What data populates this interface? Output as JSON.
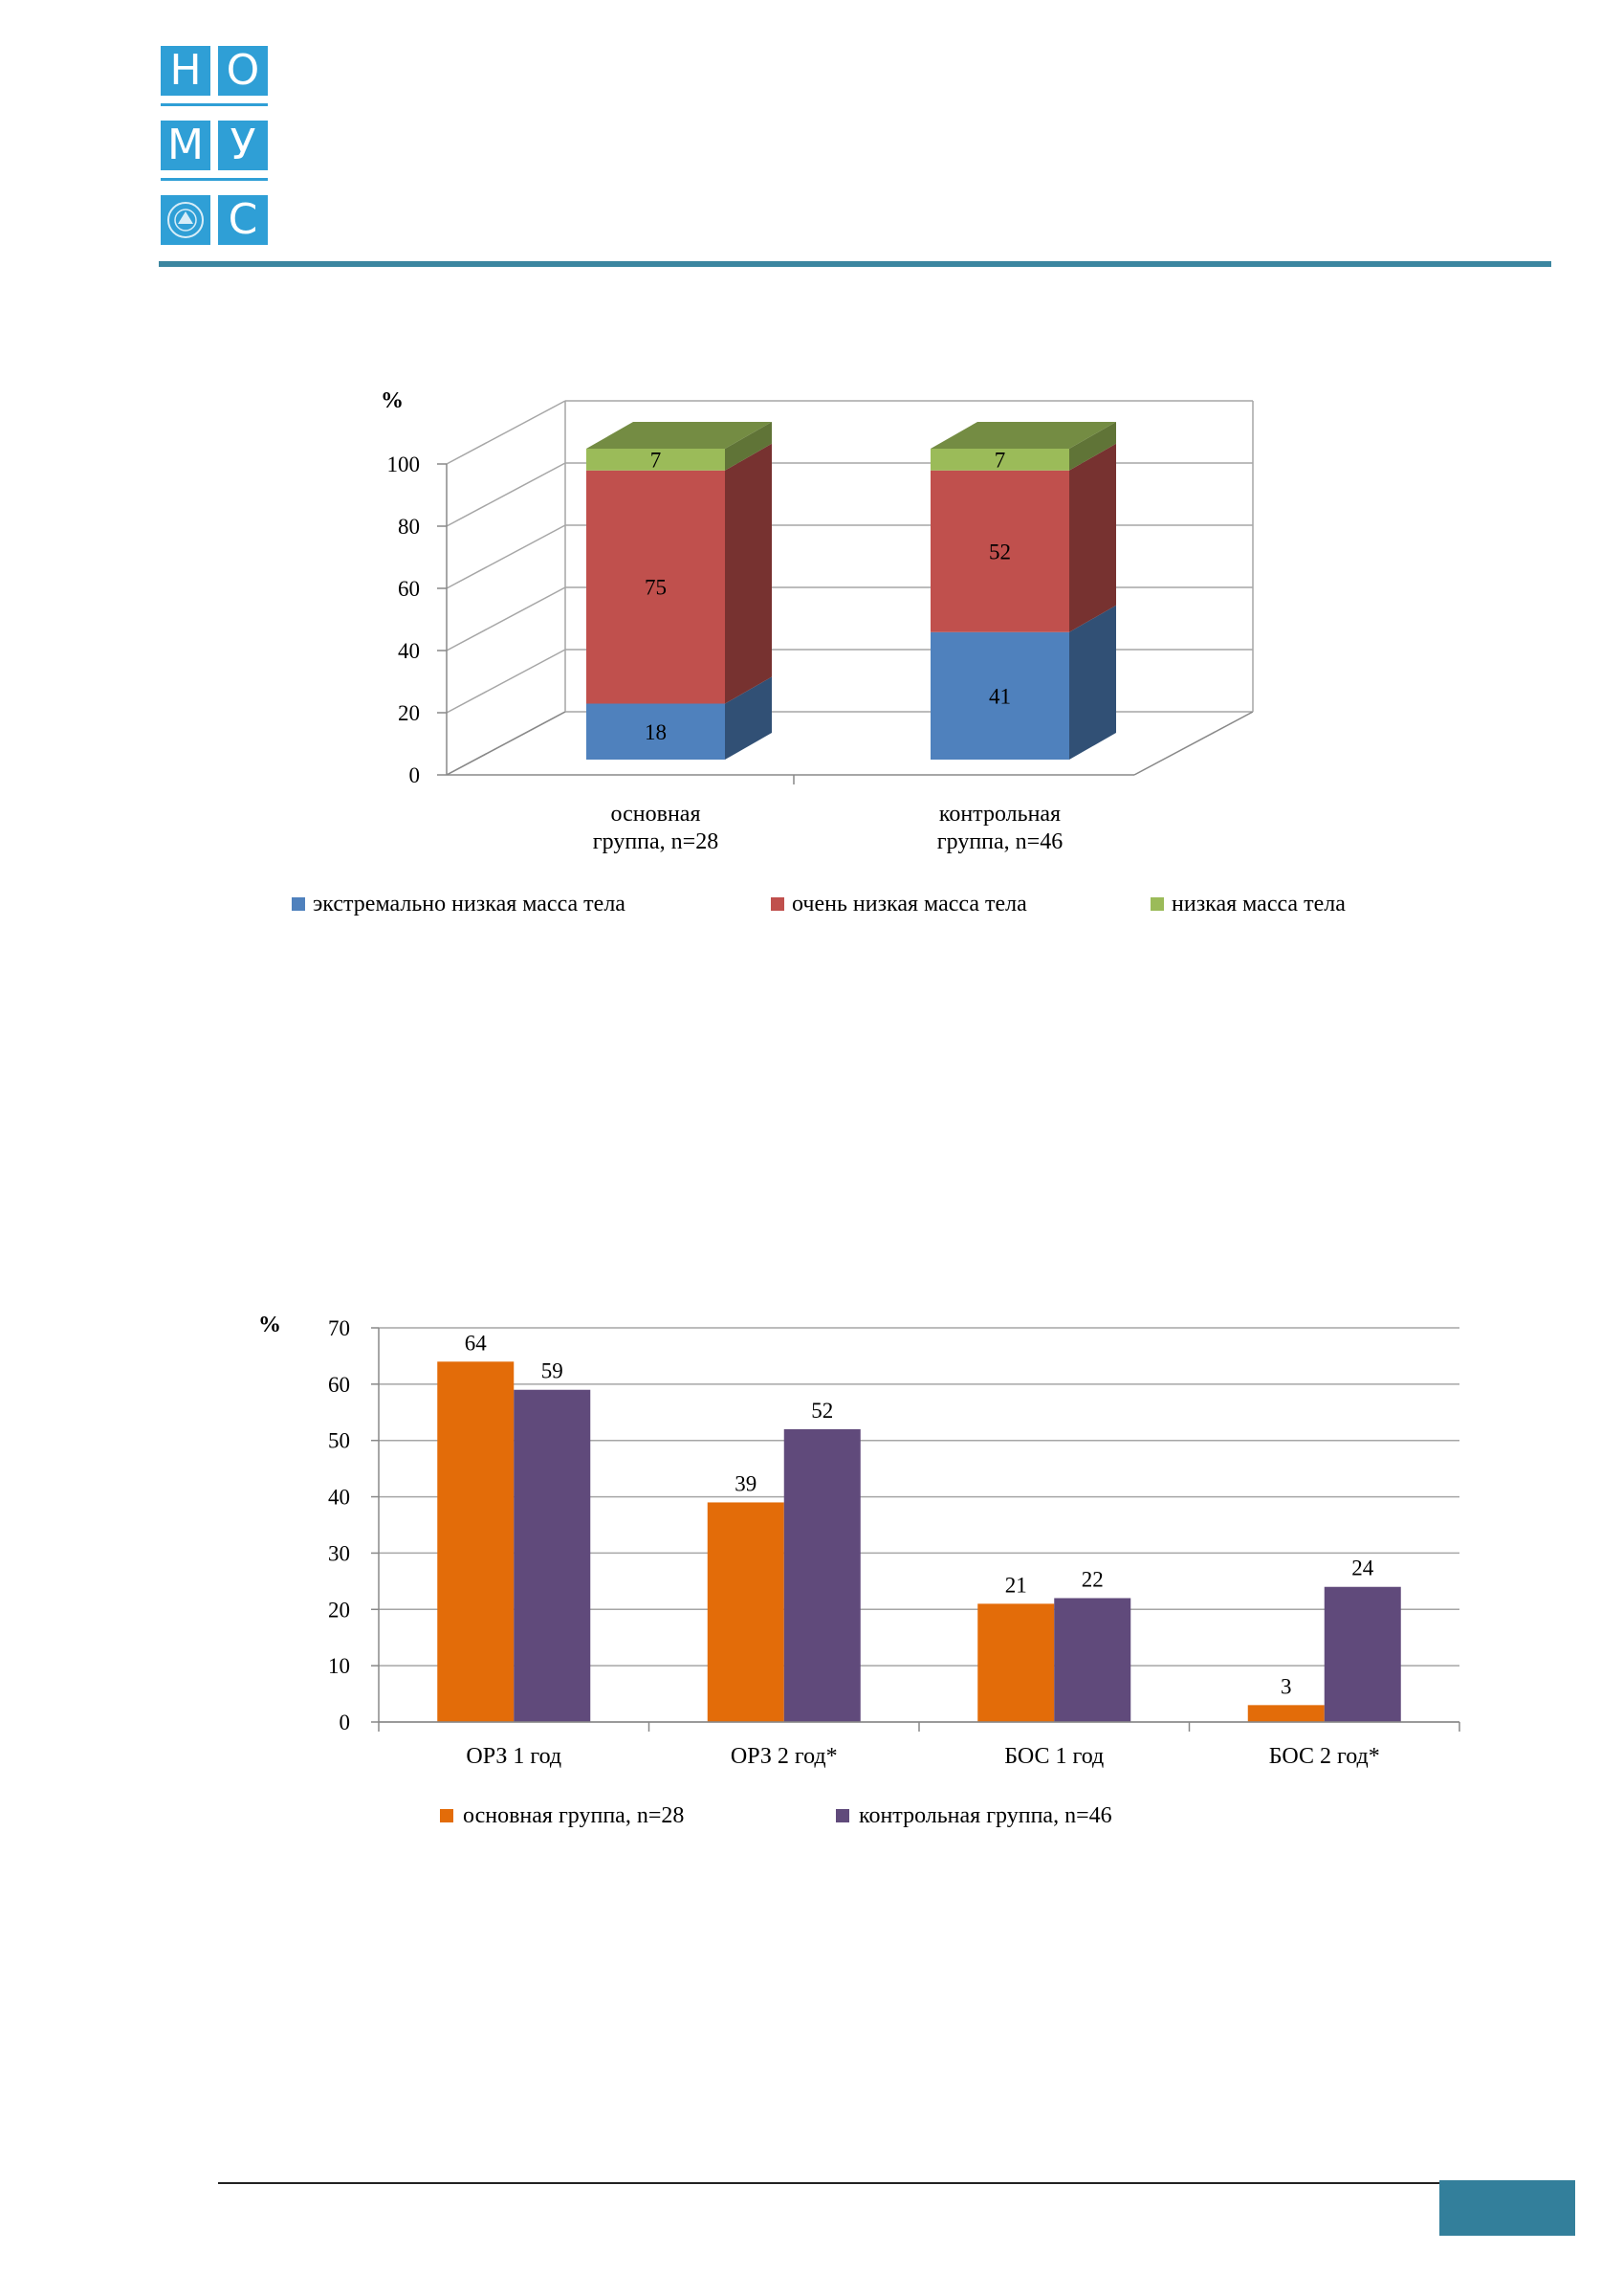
{
  "logo": {
    "letters": [
      "Н",
      "О",
      "М",
      "У",
      "С"
    ],
    "colors": {
      "brand": "#2f9fd6",
      "rule": "#3b86a0",
      "footer": "#337f9b"
    }
  },
  "chart_data": [
    {
      "type": "bar",
      "stacked": true,
      "style": "3d",
      "categories": [
        "основная группа, n=28",
        "контрольная группа, n=46"
      ],
      "category_lines": [
        [
          "основная",
          "группа, n=28"
        ],
        [
          "контрольная",
          "группа, n=46"
        ]
      ],
      "series": [
        {
          "name": "экстремально низкая масса тела",
          "values": [
            18,
            41
          ],
          "color": "#4f81bd"
        },
        {
          "name": "очень низкая масса  тела",
          "values": [
            75,
            52
          ],
          "color": "#c0504d"
        },
        {
          "name": "низкая масса тела",
          "values": [
            7,
            7
          ],
          "color": "#9bbb59"
        }
      ],
      "ylabel": "%",
      "ylim": [
        0,
        100
      ],
      "yticks": [
        0,
        20,
        40,
        60,
        80,
        100
      ],
      "grid": true,
      "legend": "bottom"
    },
    {
      "type": "bar",
      "categories": [
        "ОРЗ 1 год",
        "ОРЗ 2 год*",
        "БОС 1 год",
        "БОС 2 год*"
      ],
      "series": [
        {
          "name": "основная группа, n=28",
          "values": [
            64,
            39,
            21,
            3
          ],
          "color": "#e36c09"
        },
        {
          "name": "контрольная группа, n=46",
          "values": [
            59,
            52,
            22,
            24
          ],
          "color": "#604a7b"
        }
      ],
      "ylabel": "%",
      "ylim": [
        0,
        70
      ],
      "yticks": [
        0,
        10,
        20,
        30,
        40,
        50,
        60,
        70
      ],
      "grid": true,
      "legend": "bottom"
    }
  ]
}
